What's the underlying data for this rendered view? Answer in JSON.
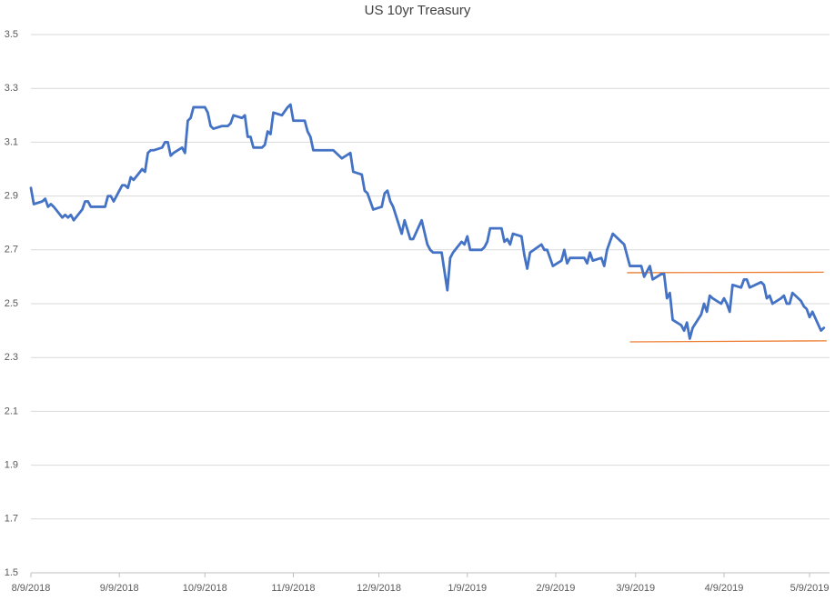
{
  "chart_data": {
    "type": "line",
    "title": "US 10yr Treasury",
    "x": [
      "8/9/2018",
      "8/10/2018",
      "8/13/2018",
      "8/14/2018",
      "8/15/2018",
      "8/16/2018",
      "8/17/2018",
      "8/20/2018",
      "8/21/2018",
      "8/22/2018",
      "8/23/2018",
      "8/24/2018",
      "8/27/2018",
      "8/28/2018",
      "8/29/2018",
      "8/30/2018",
      "8/31/2018",
      "9/4/2018",
      "9/5/2018",
      "9/6/2018",
      "9/7/2018",
      "9/10/2018",
      "9/11/2018",
      "9/12/2018",
      "9/13/2018",
      "9/14/2018",
      "9/17/2018",
      "9/18/2018",
      "9/19/2018",
      "9/20/2018",
      "9/21/2018",
      "9/24/2018",
      "9/25/2018",
      "9/26/2018",
      "9/27/2018",
      "9/28/2018",
      "10/1/2018",
      "10/2/2018",
      "10/3/2018",
      "10/4/2018",
      "10/5/2018",
      "10/9/2018",
      "10/10/2018",
      "10/11/2018",
      "10/12/2018",
      "10/15/2018",
      "10/16/2018",
      "10/17/2018",
      "10/18/2018",
      "10/19/2018",
      "10/22/2018",
      "10/23/2018",
      "10/24/2018",
      "10/25/2018",
      "10/26/2018",
      "10/29/2018",
      "10/30/2018",
      "10/31/2018",
      "11/1/2018",
      "11/2/2018",
      "11/5/2018",
      "11/7/2018",
      "11/8/2018",
      "11/9/2018",
      "11/13/2018",
      "11/14/2018",
      "11/15/2018",
      "11/16/2018",
      "11/19/2018",
      "11/23/2018",
      "11/26/2018",
      "11/29/2018",
      "11/30/2018",
      "12/3/2018",
      "12/4/2018",
      "12/5/2018",
      "12/7/2018",
      "12/10/2018",
      "12/11/2018",
      "12/12/2018",
      "12/13/2018",
      "12/14/2018",
      "12/17/2018",
      "12/18/2018",
      "12/20/2018",
      "12/21/2018",
      "12/24/2018",
      "12/26/2018",
      "12/27/2018",
      "12/28/2018",
      "12/31/2018",
      "1/2/2019",
      "1/3/2019",
      "1/4/2019",
      "1/7/2019",
      "1/8/2019",
      "1/9/2019",
      "1/10/2019",
      "1/11/2019",
      "1/14/2019",
      "1/15/2019",
      "1/16/2019",
      "1/17/2019",
      "1/18/2019",
      "1/21/2019",
      "1/22/2019",
      "1/23/2019",
      "1/24/2019",
      "1/25/2019",
      "1/28/2019",
      "1/29/2019",
      "1/30/2019",
      "1/31/2019",
      "2/4/2019",
      "2/5/2019",
      "2/6/2019",
      "2/8/2019",
      "2/11/2019",
      "2/12/2019",
      "2/13/2019",
      "2/14/2019",
      "2/19/2019",
      "2/20/2019",
      "2/21/2019",
      "2/22/2019",
      "2/25/2019",
      "2/26/2019",
      "2/27/2019",
      "3/1/2019",
      "3/4/2019",
      "3/5/2019",
      "3/6/2019",
      "3/7/2019",
      "3/11/2019",
      "3/12/2019",
      "3/13/2019",
      "3/14/2019",
      "3/15/2019",
      "3/18/2019",
      "3/19/2019",
      "3/20/2019",
      "3/21/2019",
      "3/22/2019",
      "3/25/2019",
      "3/26/2019",
      "3/27/2019",
      "3/28/2019",
      "3/29/2019",
      "4/1/2019",
      "4/2/2019",
      "4/3/2019",
      "4/4/2019",
      "4/5/2019",
      "4/8/2019",
      "4/9/2019",
      "4/10/2019",
      "4/11/2019",
      "4/12/2019",
      "4/15/2019",
      "4/16/2019",
      "4/17/2019",
      "4/18/2019",
      "4/22/2019",
      "4/23/2019",
      "4/24/2019",
      "4/25/2019",
      "4/26/2019",
      "4/29/2019",
      "4/30/2019",
      "5/1/2019",
      "5/2/2019",
      "5/3/2019",
      "5/6/2019",
      "5/7/2019",
      "5/8/2019",
      "5/9/2019",
      "5/10/2019",
      "5/13/2019",
      "5/14/2019"
    ],
    "values": [
      2.93,
      2.87,
      2.88,
      2.89,
      2.86,
      2.87,
      2.86,
      2.82,
      2.83,
      2.82,
      2.83,
      2.81,
      2.85,
      2.88,
      2.88,
      2.86,
      2.86,
      2.86,
      2.9,
      2.9,
      2.88,
      2.94,
      2.94,
      2.93,
      2.97,
      2.96,
      3.0,
      2.99,
      3.06,
      3.07,
      3.07,
      3.08,
      3.1,
      3.1,
      3.05,
      3.06,
      3.08,
      3.06,
      3.18,
      3.19,
      3.23,
      3.23,
      3.21,
      3.16,
      3.15,
      3.16,
      3.16,
      3.16,
      3.17,
      3.2,
      3.19,
      3.2,
      3.12,
      3.12,
      3.08,
      3.08,
      3.09,
      3.14,
      3.13,
      3.21,
      3.2,
      3.23,
      3.24,
      3.18,
      3.18,
      3.14,
      3.12,
      3.07,
      3.07,
      3.07,
      3.04,
      3.06,
      2.99,
      2.98,
      2.92,
      2.91,
      2.85,
      2.86,
      2.91,
      2.92,
      2.88,
      2.86,
      2.76,
      2.81,
      2.74,
      2.74,
      2.81,
      2.72,
      2.7,
      2.69,
      2.69,
      2.55,
      2.67,
      2.69,
      2.73,
      2.72,
      2.75,
      2.7,
      2.7,
      2.7,
      2.71,
      2.73,
      2.78,
      2.78,
      2.78,
      2.73,
      2.74,
      2.72,
      2.76,
      2.75,
      2.68,
      2.63,
      2.69,
      2.72,
      2.7,
      2.7,
      2.64,
      2.66,
      2.7,
      2.65,
      2.67,
      2.67,
      2.65,
      2.69,
      2.66,
      2.67,
      2.64,
      2.7,
      2.76,
      2.73,
      2.72,
      2.68,
      2.64,
      2.64,
      2.6,
      2.62,
      2.64,
      2.59,
      2.61,
      2.61,
      2.52,
      2.54,
      2.44,
      2.42,
      2.4,
      2.43,
      2.37,
      2.41,
      2.46,
      2.5,
      2.47,
      2.53,
      2.52,
      2.5,
      2.52,
      2.5,
      2.47,
      2.57,
      2.56,
      2.59,
      2.59,
      2.56,
      2.58,
      2.57,
      2.52,
      2.53,
      2.5,
      2.52,
      2.53,
      2.5,
      2.5,
      2.54,
      2.51,
      2.49,
      2.48,
      2.45,
      2.47,
      2.4,
      2.41
    ],
    "color": "#4472c4",
    "trend_lines": [
      {
        "color": "#ed7d31",
        "x": [
          "3/6/2019",
          "5/14/2019"
        ],
        "values": [
          2.615,
          2.617
        ]
      },
      {
        "color": "#ed7d31",
        "x": [
          "3/7/2019",
          "5/15/2019"
        ],
        "values": [
          2.358,
          2.362
        ]
      }
    ],
    "xlim": [
      "8/9/2018",
      "5/16/2019"
    ],
    "xticks": [
      "8/9/2018",
      "9/9/2018",
      "10/9/2018",
      "11/9/2018",
      "12/9/2018",
      "1/9/2019",
      "2/9/2019",
      "3/9/2019",
      "4/9/2019",
      "5/9/2019"
    ],
    "ylim": [
      1.5,
      3.5
    ],
    "yticks": [
      1.5,
      1.7,
      1.9,
      2.1,
      2.3,
      2.5,
      2.7,
      2.9,
      3.1,
      3.3,
      3.5
    ],
    "grid": true
  }
}
